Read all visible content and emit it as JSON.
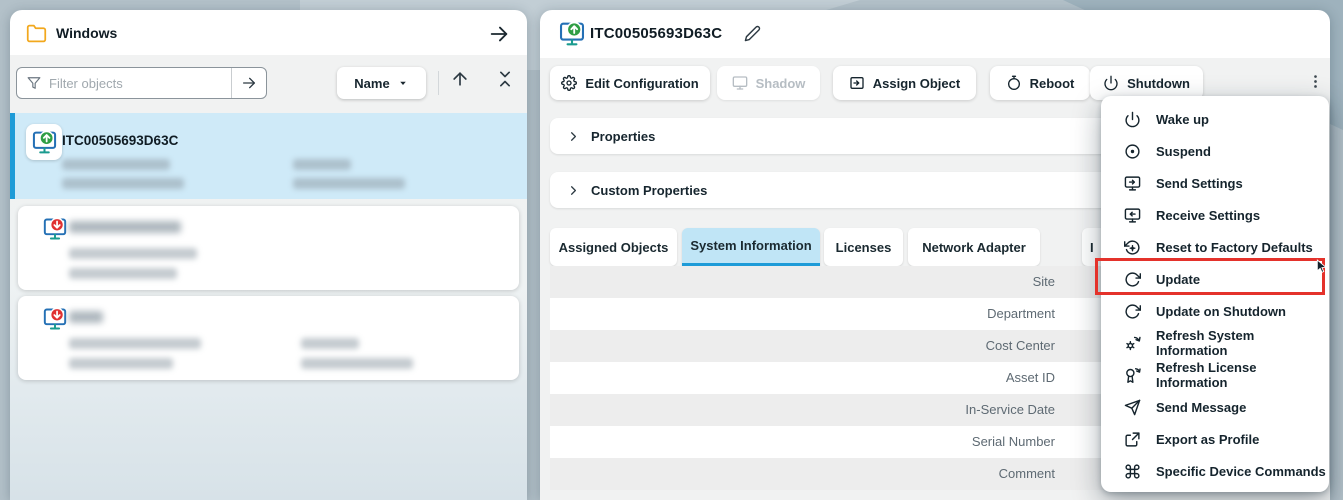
{
  "left_panel": {
    "title": "Windows",
    "filter": {
      "placeholder": "Filter objects"
    },
    "sort": {
      "label": "Name"
    },
    "devices": [
      {
        "name": "ITC00505693D63C",
        "status": "online",
        "selected": true
      },
      {
        "name": "",
        "status": "offline",
        "selected": false
      },
      {
        "name": "",
        "status": "offline",
        "selected": false
      }
    ]
  },
  "right_panel": {
    "title": "ITC00505693D63C",
    "toolbar": [
      {
        "label": "Edit Configuration",
        "icon": "gear",
        "disabled": false
      },
      {
        "label": "Shadow",
        "icon": "monitor",
        "disabled": true
      },
      {
        "label": "Assign Object",
        "icon": "assign",
        "disabled": false
      },
      {
        "label": "Reboot",
        "icon": "reboot",
        "disabled": false
      },
      {
        "label": "Shutdown",
        "icon": "power",
        "disabled": false
      }
    ],
    "accordions": [
      {
        "label": "Properties"
      },
      {
        "label": "Custom Properties"
      }
    ],
    "tabs": [
      {
        "label": "Assigned Objects",
        "active": false
      },
      {
        "label": "System Information",
        "active": true
      },
      {
        "label": "Licenses",
        "active": false
      },
      {
        "label": "Network Adapter",
        "active": false
      },
      {
        "label": "I",
        "active": false
      }
    ],
    "system_information": {
      "rows": [
        {
          "label": "Site",
          "value": ""
        },
        {
          "label": "Department",
          "value": ""
        },
        {
          "label": "Cost Center",
          "value": ""
        },
        {
          "label": "Asset ID",
          "value": ""
        },
        {
          "label": "In-Service Date",
          "value": ""
        },
        {
          "label": "Serial Number",
          "value": ""
        },
        {
          "label": "Comment",
          "value": ""
        }
      ]
    }
  },
  "context_menu": {
    "items": [
      {
        "label": "Wake up",
        "icon": "power"
      },
      {
        "label": "Suspend",
        "icon": "suspend"
      },
      {
        "label": "Send Settings",
        "icon": "monitor-out"
      },
      {
        "label": "Receive Settings",
        "icon": "monitor-in"
      },
      {
        "label": "Reset to Factory Defaults",
        "icon": "reset"
      },
      {
        "label": "Update",
        "icon": "update",
        "highlighted": true
      },
      {
        "label": "Update on Shutdown",
        "icon": "update"
      },
      {
        "label": "Refresh System Information",
        "icon": "refresh-gear"
      },
      {
        "label": "Refresh License Information",
        "icon": "refresh-award"
      },
      {
        "label": "Send Message",
        "icon": "send"
      },
      {
        "label": "Export as Profile",
        "icon": "export"
      },
      {
        "label": "Specific Device Commands",
        "icon": "command"
      }
    ]
  },
  "colors": {
    "accent_blue": "#1d9bd8",
    "selected_item_bg": "#cfeaf8",
    "active_tab_bg": "#c0e5f6",
    "highlight_red": "#e4322b",
    "online_green": "#2f9e44",
    "offline_red": "#e03131",
    "folder_yellow": "#f2a81d",
    "toolbar_gray": "#f1f2f2"
  }
}
